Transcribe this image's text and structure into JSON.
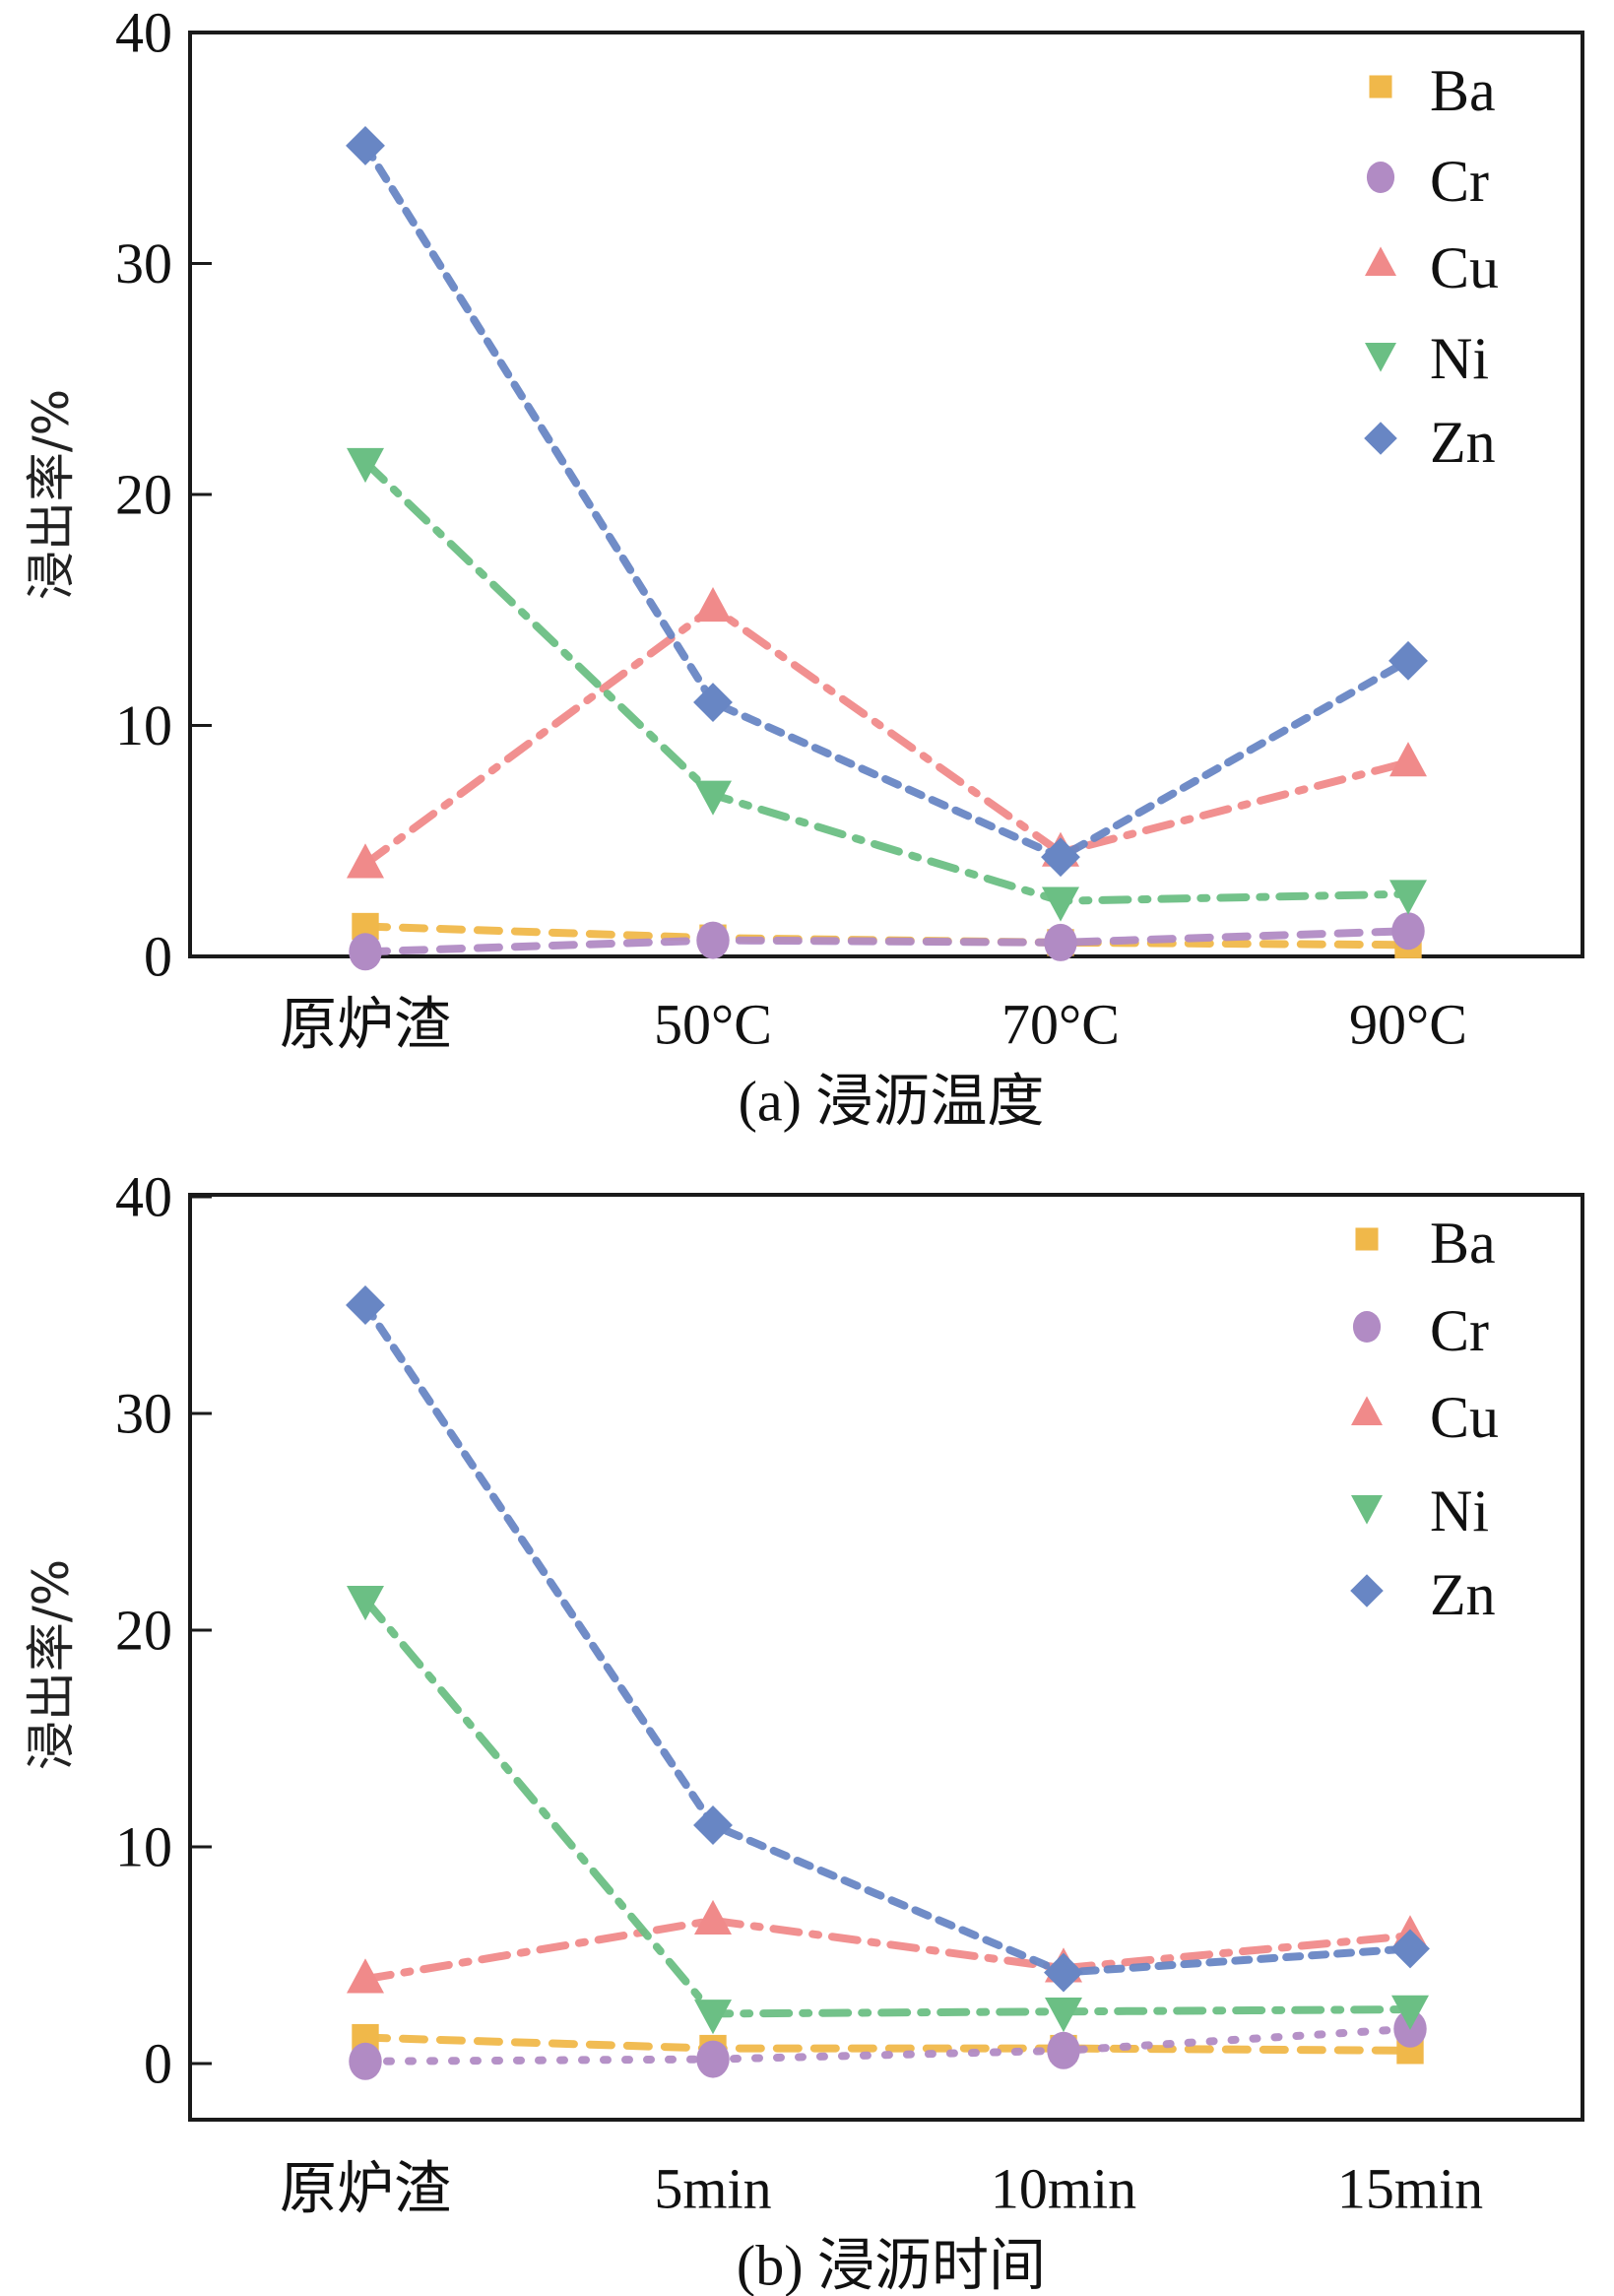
{
  "chart_data": [
    {
      "type": "line",
      "id": "a",
      "title": "",
      "caption": "(a) 浸沥温度",
      "xlabel": "",
      "ylabel": "浸出率/%",
      "categories": [
        "原炉渣",
        "50°C",
        "70°C",
        "90°C"
      ],
      "ylim": [
        0,
        40
      ],
      "yticks": [
        0,
        10,
        20,
        30,
        40
      ],
      "grid": false,
      "legend_position": "top-right",
      "series": [
        {
          "name": "Ba",
          "marker": "square",
          "line": "dashed",
          "color": "#F0B84A",
          "values": [
            1.3,
            0.8,
            0.6,
            0.5
          ]
        },
        {
          "name": "Cr",
          "marker": "circle",
          "line": "dashed",
          "color": "#B18BC4",
          "values": [
            0.2,
            0.7,
            0.6,
            1.1
          ]
        },
        {
          "name": "Cu",
          "marker": "triangle-up",
          "line": "dash-dot",
          "color": "#F08A8A",
          "values": [
            4.0,
            15.1,
            4.5,
            8.4
          ]
        },
        {
          "name": "Ni",
          "marker": "triangle-down",
          "line": "dash-dot",
          "color": "#6BBF84",
          "values": [
            21.4,
            7.0,
            2.4,
            2.7
          ]
        },
        {
          "name": "Zn",
          "marker": "diamond",
          "line": "short-dash",
          "color": "#6886C4",
          "values": [
            35.1,
            11.0,
            4.3,
            12.8
          ]
        }
      ]
    },
    {
      "type": "line",
      "id": "b",
      "title": "",
      "caption": "(b) 浸沥时间",
      "xlabel": "",
      "ylabel": "浸出率/%",
      "categories": [
        "原炉渣",
        "5min",
        "10min",
        "15min"
      ],
      "ylim": [
        -2.5,
        40
      ],
      "yticks": [
        0,
        10,
        20,
        30,
        40
      ],
      "grid": false,
      "legend_position": "top-right",
      "series": [
        {
          "name": "Ba",
          "marker": "square",
          "line": "dashed",
          "color": "#F0B84A",
          "values": [
            1.2,
            0.7,
            0.7,
            0.6
          ]
        },
        {
          "name": "Cr",
          "marker": "circle",
          "line": "dotted",
          "color": "#B18BC4",
          "values": [
            0.1,
            0.2,
            0.6,
            1.6
          ]
        },
        {
          "name": "Cu",
          "marker": "triangle-up",
          "line": "dash-dot",
          "color": "#F08A8A",
          "values": [
            3.9,
            6.6,
            4.4,
            5.9
          ]
        },
        {
          "name": "Ni",
          "marker": "triangle-down",
          "line": "dash-dot",
          "color": "#6BBF84",
          "values": [
            21.4,
            2.3,
            2.4,
            2.5
          ]
        },
        {
          "name": "Zn",
          "marker": "diamond",
          "line": "short-dash",
          "color": "#6886C4",
          "values": [
            35.0,
            11.0,
            4.2,
            5.3
          ]
        }
      ]
    }
  ]
}
